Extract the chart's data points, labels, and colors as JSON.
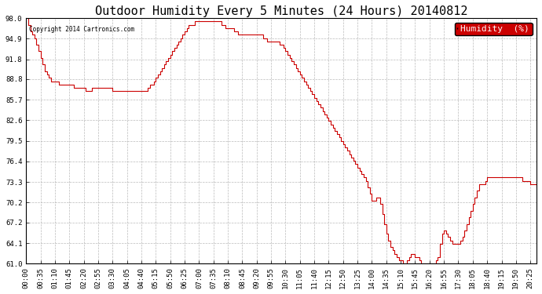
{
  "title": "Outdoor Humidity Every 5 Minutes (24 Hours) 20140812",
  "copyright": "Copyright 2014 Cartronics.com",
  "legend_label": "Humidity  (%)",
  "line_color": "#cc0000",
  "background_color": "#ffffff",
  "grid_color": "#aaaaaa",
  "ylim": [
    61.0,
    98.0
  ],
  "yticks": [
    61.0,
    64.1,
    67.2,
    70.2,
    73.3,
    76.4,
    79.5,
    82.6,
    85.7,
    88.8,
    91.8,
    94.9,
    98.0
  ],
  "humidity_data": [
    98.0,
    97.0,
    96.0,
    95.5,
    95.0,
    94.0,
    93.0,
    92.0,
    91.0,
    90.0,
    89.5,
    89.0,
    88.5,
    88.5,
    88.5,
    88.5,
    88.0,
    88.0,
    88.0,
    88.0,
    88.0,
    88.0,
    88.0,
    87.5,
    87.5,
    87.5,
    87.5,
    87.5,
    87.5,
    87.0,
    87.0,
    87.0,
    87.5,
    87.5,
    87.5,
    87.5,
    87.5,
    87.5,
    87.5,
    87.5,
    87.5,
    87.5,
    87.0,
    87.0,
    87.0,
    87.0,
    87.0,
    87.0,
    87.0,
    87.0,
    87.0,
    87.0,
    87.0,
    87.0,
    87.0,
    87.0,
    87.0,
    87.0,
    87.0,
    87.5,
    88.0,
    88.0,
    88.5,
    89.0,
    89.5,
    90.0,
    90.5,
    91.0,
    91.5,
    92.0,
    92.5,
    93.0,
    93.5,
    94.0,
    94.5,
    95.0,
    95.5,
    96.0,
    96.5,
    97.0,
    97.0,
    97.0,
    97.5,
    97.5,
    97.5,
    97.5,
    97.5,
    97.5,
    97.5,
    97.5,
    97.5,
    97.5,
    97.5,
    97.5,
    97.5,
    97.0,
    97.0,
    96.5,
    96.5,
    96.5,
    96.5,
    96.0,
    96.0,
    95.5,
    95.5,
    95.5,
    95.5,
    95.5,
    95.5,
    95.5,
    95.5,
    95.5,
    95.5,
    95.5,
    95.5,
    95.0,
    95.0,
    94.5,
    94.5,
    94.5,
    94.5,
    94.5,
    94.5,
    94.0,
    94.0,
    93.5,
    93.0,
    92.5,
    92.0,
    91.5,
    91.0,
    90.5,
    90.0,
    89.5,
    89.0,
    88.5,
    88.0,
    87.5,
    87.0,
    86.5,
    86.0,
    85.5,
    85.0,
    84.5,
    84.0,
    83.5,
    83.0,
    82.5,
    82.0,
    81.5,
    81.0,
    80.5,
    80.0,
    79.5,
    79.0,
    78.5,
    78.0,
    77.5,
    77.0,
    76.5,
    76.0,
    75.5,
    75.0,
    74.5,
    74.0,
    73.5,
    72.5,
    71.5,
    70.5,
    70.5,
    71.0,
    71.0,
    70.0,
    68.5,
    67.0,
    65.5,
    64.5,
    63.5,
    63.0,
    62.5,
    62.0,
    61.5,
    61.5,
    61.0,
    61.0,
    61.5,
    62.0,
    62.5,
    62.5,
    62.0,
    62.0,
    61.5,
    61.0,
    61.0,
    61.0,
    61.0,
    61.0,
    61.0,
    61.0,
    61.5,
    62.0,
    64.0,
    65.5,
    66.0,
    65.5,
    65.0,
    64.5,
    64.0,
    64.0,
    64.0,
    64.0,
    64.5,
    65.0,
    66.0,
    67.0,
    68.0,
    69.0,
    70.0,
    71.0,
    72.0,
    73.0,
    73.0,
    73.0,
    73.5,
    74.0,
    74.0,
    74.0,
    74.0,
    74.0,
    74.0,
    74.0,
    74.0,
    74.0,
    74.0,
    74.0,
    74.0,
    74.0,
    74.0,
    74.0,
    74.0,
    74.0,
    73.5,
    73.5,
    73.5,
    73.5,
    73.0,
    73.0,
    73.0,
    72.5
  ],
  "xtick_interval": 7,
  "title_fontsize": 11,
  "tick_fontsize": 6.5,
  "legend_fontsize": 8,
  "fig_width": 6.9,
  "fig_height": 3.75,
  "dpi": 100
}
